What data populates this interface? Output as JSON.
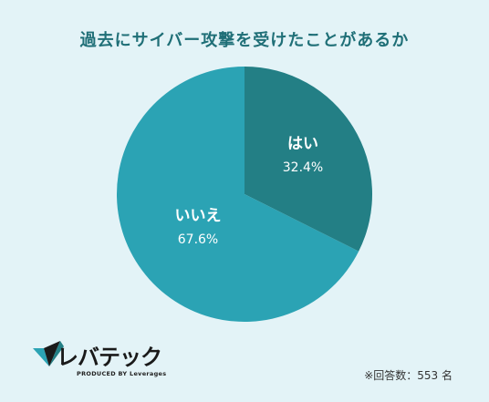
{
  "chart_data": {
    "type": "pie",
    "title": "過去にサイバー攻撃を受けたことがあるか",
    "slices": [
      {
        "label": "はい",
        "value": 32.4,
        "display": "32.4%",
        "color": "#237f85"
      },
      {
        "label": "いいえ",
        "value": 67.6,
        "display": "67.6%",
        "color": "#2ba3b4"
      }
    ]
  },
  "logo": {
    "name": "レバテック",
    "tagline": "PRODUCED BY Leverages"
  },
  "footnote": "※回答数：553 名"
}
